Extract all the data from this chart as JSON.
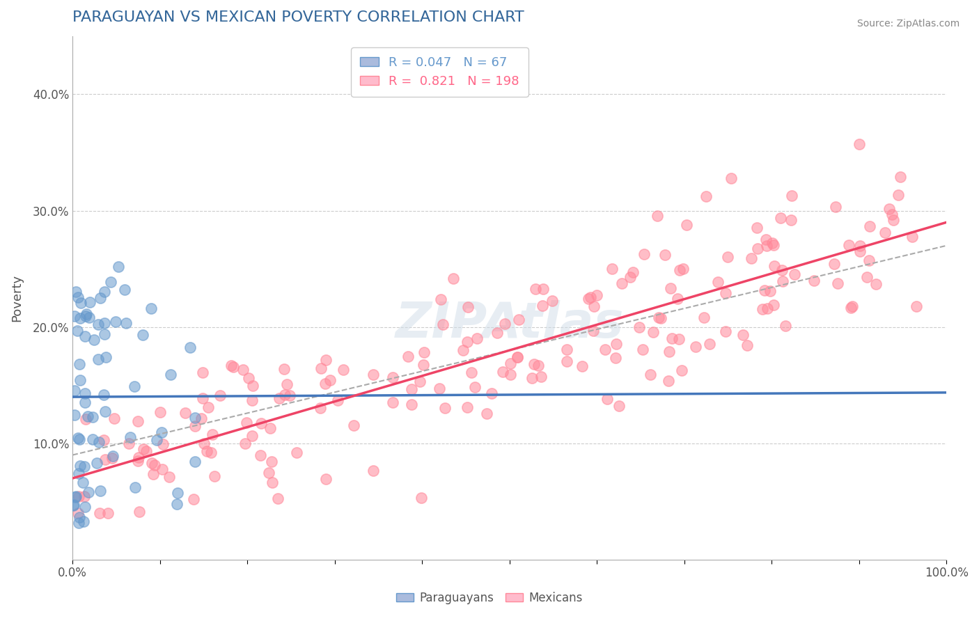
{
  "title": "PARAGUAYAN VS MEXICAN POVERTY CORRELATION CHART",
  "source": "Source: ZipAtlas.com",
  "ylabel": "Poverty",
  "xlabel": "",
  "xlim": [
    0.0,
    1.0
  ],
  "ylim": [
    0.0,
    0.45
  ],
  "xticks": [
    0.0,
    0.1,
    0.2,
    0.3,
    0.4,
    0.5,
    0.6,
    0.7,
    0.8,
    0.9,
    1.0
  ],
  "xticklabels": [
    "0.0%",
    "",
    "",
    "",
    "",
    "",
    "",
    "",
    "",
    "",
    "100.0%"
  ],
  "yticks": [
    0.0,
    0.1,
    0.2,
    0.3,
    0.4
  ],
  "yticklabels": [
    "",
    "10.0%",
    "20.0%",
    "30.0%",
    "40.0%"
  ],
  "paraguayan_color": "#6699cc",
  "mexican_color": "#ff8899",
  "paraguayan_R": 0.047,
  "paraguayan_N": 67,
  "mexican_R": 0.821,
  "mexican_N": 198,
  "paraguayan_scatter_seed": 42,
  "mexican_scatter_seed": 99,
  "watermark": "ZIPAtlas",
  "bg_color": "#ffffff",
  "grid_color": "#cccccc",
  "title_color": "#336699",
  "legend_R_color_paraguayan": "#6699cc",
  "legend_R_color_mexican": "#ff6688"
}
